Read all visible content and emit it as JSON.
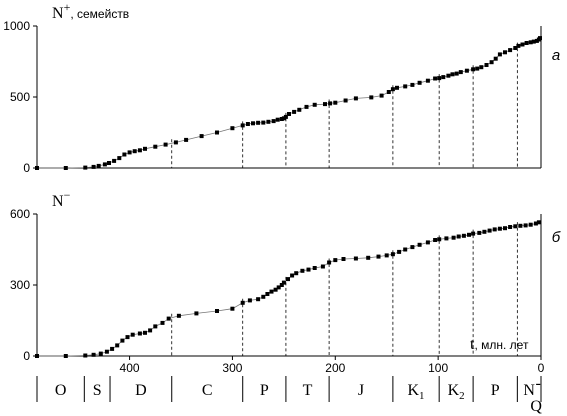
{
  "chart_data": [
    {
      "type": "scatter",
      "panel_label": "а",
      "ylabel_main": "N",
      "ylabel_sup": "+",
      "ylabel_rest": ", семейств",
      "xlabel": "",
      "xlim": [
        490,
        0
      ],
      "ylim": [
        0,
        1000
      ],
      "yticks": [
        0,
        500,
        1000
      ],
      "boundaries": [
        359,
        290,
        248,
        206,
        144,
        99,
        66,
        23
      ],
      "series": [
        {
          "x": [
            490,
            462,
            443,
            435,
            430,
            424,
            420,
            415,
            410,
            405,
            400,
            395,
            390,
            385,
            375,
            365,
            355,
            345,
            330,
            315,
            300,
            290,
            285,
            280,
            275,
            270,
            265,
            260,
            256,
            252,
            250,
            248,
            245,
            240,
            235,
            228,
            220,
            210,
            205,
            200,
            190,
            180,
            165,
            155,
            148,
            144,
            140,
            132,
            125,
            118,
            110,
            103,
            99,
            95,
            90,
            86,
            82,
            78,
            72,
            66,
            62,
            58,
            53,
            48,
            44,
            40,
            35,
            30,
            25,
            22,
            18,
            14,
            10,
            7,
            4,
            2,
            1
          ],
          "y": [
            0,
            0,
            3,
            8,
            15,
            25,
            35,
            50,
            70,
            95,
            110,
            118,
            125,
            135,
            150,
            165,
            180,
            198,
            225,
            250,
            280,
            300,
            310,
            315,
            318,
            320,
            325,
            330,
            340,
            345,
            350,
            360,
            380,
            395,
            410,
            430,
            445,
            450,
            455,
            460,
            475,
            490,
            497,
            510,
            535,
            555,
            565,
            575,
            585,
            600,
            615,
            630,
            633,
            640,
            650,
            660,
            665,
            675,
            685,
            695,
            700,
            710,
            725,
            745,
            770,
            800,
            815,
            830,
            845,
            860,
            870,
            880,
            885,
            890,
            895,
            905,
            915
          ]
        }
      ]
    },
    {
      "type": "scatter",
      "panel_label": "б",
      "ylabel_main": "N",
      "ylabel_sup": "−",
      "xlabel_main": "t",
      "xlabel_rest": ", млн. лет",
      "xlim": [
        490,
        0
      ],
      "ylim": [
        0,
        600
      ],
      "yticks": [
        0,
        300,
        600
      ],
      "xticks": [
        400,
        300,
        200,
        100,
        0
      ],
      "boundaries": [
        359,
        290,
        248,
        206,
        144,
        99,
        66,
        23
      ],
      "series": [
        {
          "x": [
            490,
            462,
            443,
            435,
            428,
            422,
            417,
            412,
            407,
            402,
            397,
            390,
            385,
            380,
            375,
            368,
            362,
            352,
            335,
            315,
            300,
            290,
            283,
            275,
            270,
            266,
            262,
            258,
            255,
            252,
            250,
            246,
            242,
            238,
            232,
            226,
            220,
            212,
            206,
            200,
            192,
            180,
            168,
            158,
            150,
            144,
            138,
            132,
            125,
            118,
            110,
            103,
            99,
            92,
            85,
            80,
            75,
            70,
            66,
            60,
            55,
            50,
            45,
            40,
            35,
            30,
            25,
            20,
            15,
            10,
            5,
            2
          ],
          "y": [
            0,
            0,
            2,
            5,
            10,
            18,
            30,
            45,
            65,
            80,
            90,
            95,
            98,
            108,
            125,
            140,
            158,
            170,
            180,
            190,
            200,
            225,
            235,
            240,
            250,
            262,
            272,
            280,
            290,
            300,
            310,
            325,
            340,
            350,
            360,
            365,
            372,
            378,
            395,
            405,
            410,
            412,
            415,
            420,
            425,
            430,
            440,
            450,
            460,
            470,
            480,
            490,
            493,
            497,
            500,
            505,
            508,
            512,
            517,
            520,
            525,
            530,
            535,
            538,
            540,
            545,
            548,
            550,
            552,
            555,
            560,
            565
          ]
        }
      ]
    }
  ],
  "periods": [
    {
      "label": "O",
      "sub": ""
    },
    {
      "label": "S",
      "sub": ""
    },
    {
      "label": "D",
      "sub": ""
    },
    {
      "label": "C",
      "sub": ""
    },
    {
      "label": "P",
      "sub": ""
    },
    {
      "label": "T",
      "sub": ""
    },
    {
      "label": "J",
      "sub": ""
    },
    {
      "label": "K",
      "sub": "1"
    },
    {
      "label": "K",
      "sub": "2"
    },
    {
      "label": "Р",
      "sub": ""
    },
    {
      "label": "N",
      "sub": "",
      "extra_top": "-",
      "extra_bottom": "Q"
    }
  ]
}
